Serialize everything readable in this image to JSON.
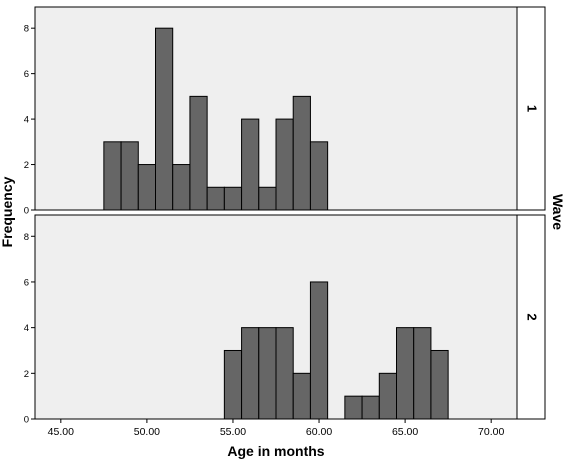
{
  "chart_data": {
    "type": "bar",
    "subtype": "paneled-histogram",
    "xlabel": "Age in months",
    "ylabel": "Frequency",
    "panel_variable": "Wave",
    "x_ticks": [
      "45.00",
      "50.00",
      "55.00",
      "60.00",
      "65.00",
      "70.00"
    ],
    "y_ticks": [
      "0",
      "2",
      "4",
      "6",
      "8"
    ],
    "xlim": [
      43.5,
      71.5
    ],
    "ylim": [
      0,
      8.8
    ],
    "bin_width": 1,
    "bar_color": "#666666",
    "panel_background": "#efefef",
    "grid": false,
    "panels": [
      {
        "label": "1",
        "bins": [
          {
            "x": 48,
            "count": 3
          },
          {
            "x": 49,
            "count": 3
          },
          {
            "x": 50,
            "count": 2
          },
          {
            "x": 51,
            "count": 8
          },
          {
            "x": 52,
            "count": 2
          },
          {
            "x": 53,
            "count": 5
          },
          {
            "x": 54,
            "count": 1
          },
          {
            "x": 55,
            "count": 1
          },
          {
            "x": 56,
            "count": 4
          },
          {
            "x": 57,
            "count": 1
          },
          {
            "x": 58,
            "count": 4
          },
          {
            "x": 59,
            "count": 5
          },
          {
            "x": 60,
            "count": 3
          }
        ]
      },
      {
        "label": "2",
        "bins": [
          {
            "x": 55,
            "count": 3
          },
          {
            "x": 56,
            "count": 4
          },
          {
            "x": 57,
            "count": 4
          },
          {
            "x": 58,
            "count": 4
          },
          {
            "x": 59,
            "count": 2
          },
          {
            "x": 60,
            "count": 6
          },
          {
            "x": 62,
            "count": 1
          },
          {
            "x": 63,
            "count": 1
          },
          {
            "x": 64,
            "count": 2
          },
          {
            "x": 65,
            "count": 4
          },
          {
            "x": 66,
            "count": 4
          },
          {
            "x": 67,
            "count": 3
          }
        ]
      }
    ]
  }
}
